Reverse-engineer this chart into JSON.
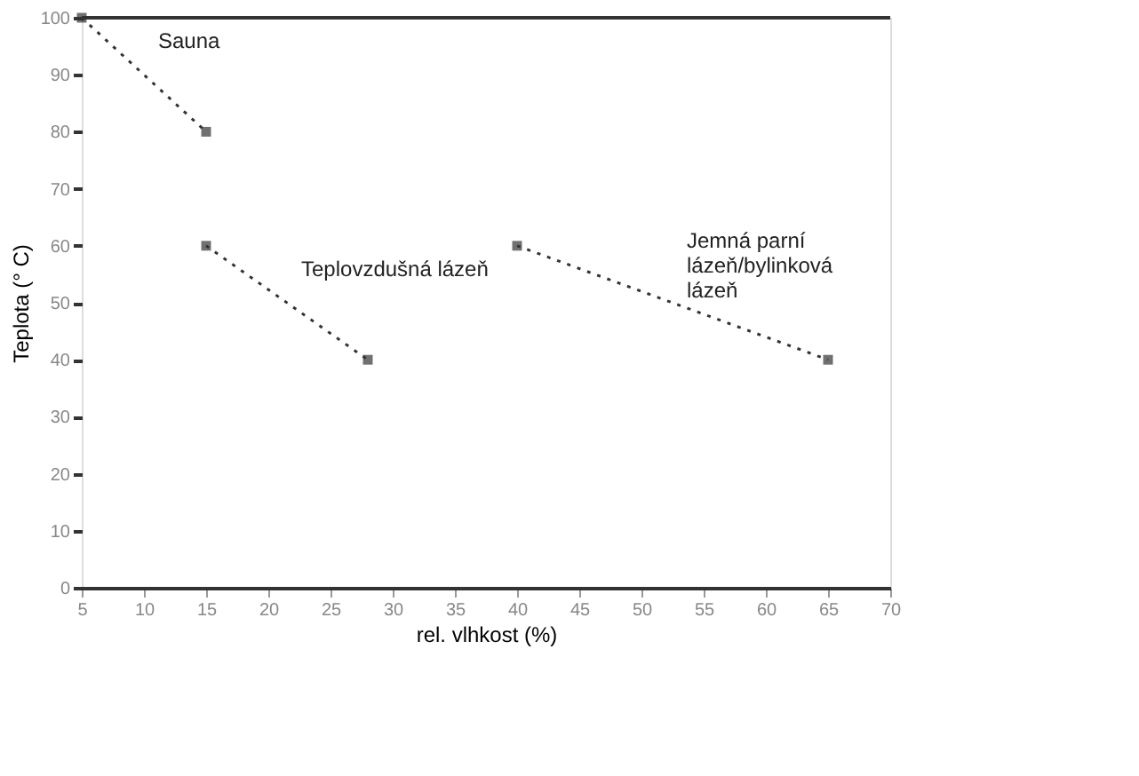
{
  "chart_data": {
    "type": "line",
    "xlabel": "rel. vlhkost (%)",
    "ylabel": "Teplota (° C)",
    "xlim": [
      5,
      70
    ],
    "xticks": [
      5,
      10,
      15,
      20,
      25,
      30,
      35,
      40,
      45,
      50,
      55,
      60,
      65,
      70
    ],
    "ylim": [
      0,
      100
    ],
    "yticks": [
      0,
      10,
      20,
      30,
      40,
      50,
      60,
      70,
      80,
      90,
      100
    ],
    "grid": false,
    "legend": false,
    "marker": "square",
    "line_style": "dotted",
    "series": [
      {
        "name": "Sauna",
        "color": "#333333",
        "x": [
          5,
          15
        ],
        "values": [
          100,
          80
        ]
      },
      {
        "name": "Teplovzdušná lázeň",
        "color": "#333333",
        "x": [
          15,
          28
        ],
        "values": [
          60,
          40
        ]
      },
      {
        "name": "Jemná parní\nlázeň/bylinková\nlázeň",
        "color": "#333333",
        "x": [
          40,
          65
        ],
        "values": [
          60,
          40
        ]
      }
    ]
  }
}
